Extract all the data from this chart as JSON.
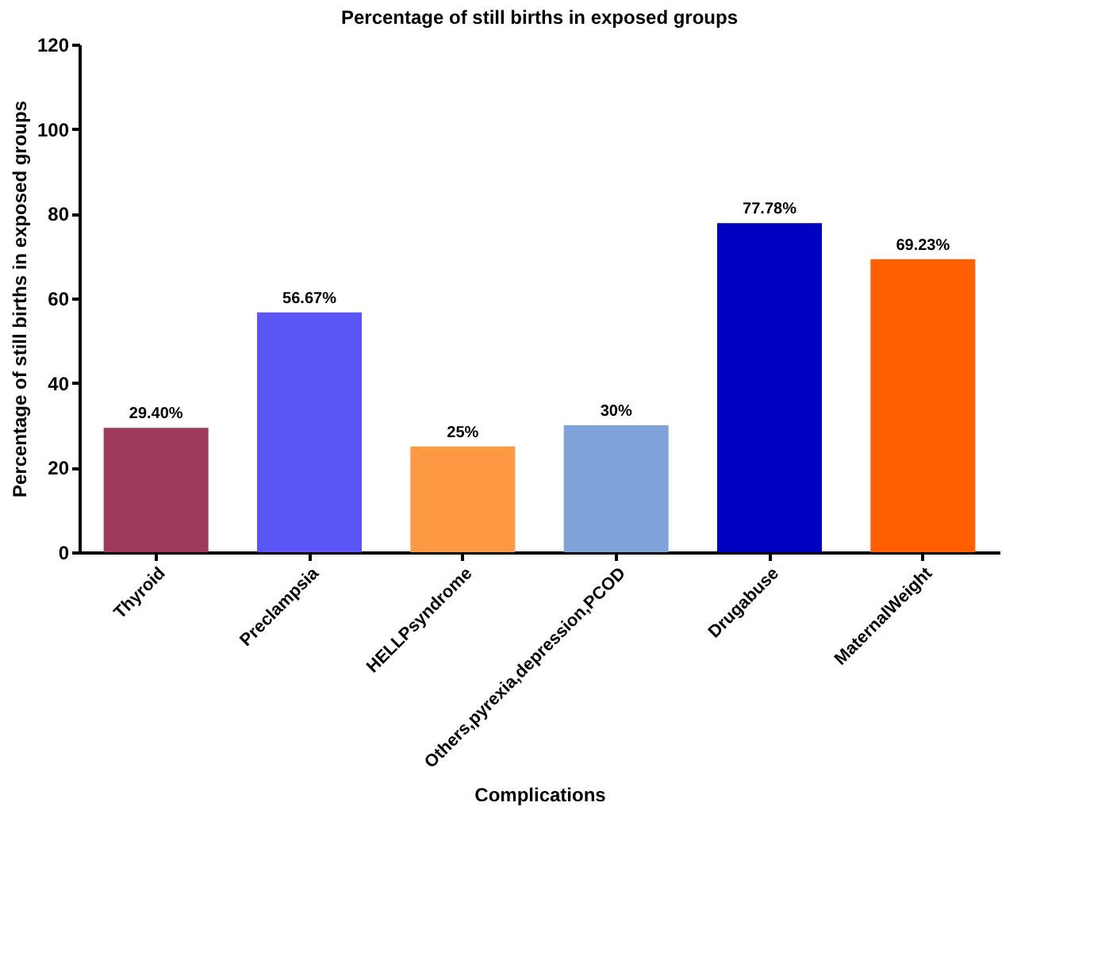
{
  "chart_data": {
    "type": "bar",
    "title": "Percentage of still births in exposed groups",
    "xlabel": "Complications",
    "ylabel": "Percentage of still births in exposed groups",
    "categories": [
      "Thyroid",
      "Preclampsia",
      "HELLPsyndrome",
      "Others,pyrexia,depression,PCOD",
      "Drugabuse",
      "MaternalWeight"
    ],
    "values": [
      29.4,
      56.67,
      25,
      30,
      77.78,
      69.23
    ],
    "colors": [
      "#9e3a5e",
      "#5a55f5",
      "#ff9944",
      "#7fa3d8",
      "#0000c0",
      "#ff5f00"
    ],
    "value_labels": [
      "29.40%",
      "56.67%",
      "25%",
      "30%",
      "77.78%",
      "69.23%"
    ],
    "ylim": [
      0,
      120
    ],
    "yticks": [
      0,
      20,
      40,
      60,
      80,
      100,
      120
    ],
    "grid": false
  }
}
